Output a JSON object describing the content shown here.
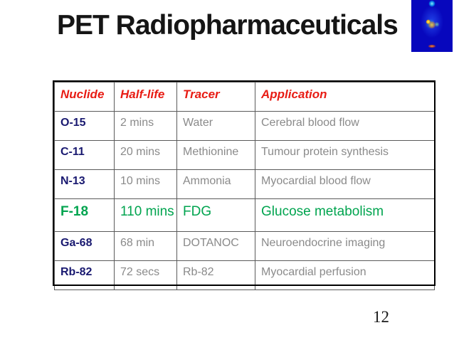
{
  "title": "PET Radiopharmaceuticals",
  "page_number": "12",
  "header_image": "pet-scan-thumbnail",
  "table": {
    "columns": [
      "Nuclide",
      "Half-life",
      "Tracer",
      "Application"
    ],
    "rows": [
      {
        "nuclide": "O-15",
        "half_life": "2 mins",
        "tracer": "Water",
        "application": "Cerebral blood flow",
        "highlight": false
      },
      {
        "nuclide": "C-11",
        "half_life": "20 mins",
        "tracer": "Methionine",
        "application": "Tumour protein synthesis",
        "highlight": false
      },
      {
        "nuclide": "N-13",
        "half_life": "10 mins",
        "tracer": "Ammonia",
        "application": "Myocardial blood flow",
        "highlight": false
      },
      {
        "nuclide": "F-18",
        "half_life": "110 mins",
        "tracer": "FDG",
        "application": "Glucose metabolism",
        "highlight": true
      },
      {
        "nuclide": "Ga-68",
        "half_life": "68 min",
        "tracer": "DOTANOC",
        "application": "Neuroendocrine imaging",
        "highlight": false
      },
      {
        "nuclide": "Rb-82",
        "half_life": "72 secs",
        "tracer": "Rb-82",
        "application": "Myocardial perfusion",
        "highlight": false
      }
    ]
  },
  "colors": {
    "header_text": "#e81c14",
    "nuclide_text": "#191970",
    "body_text": "#8a8a8a",
    "highlight_text": "#00a44f"
  }
}
